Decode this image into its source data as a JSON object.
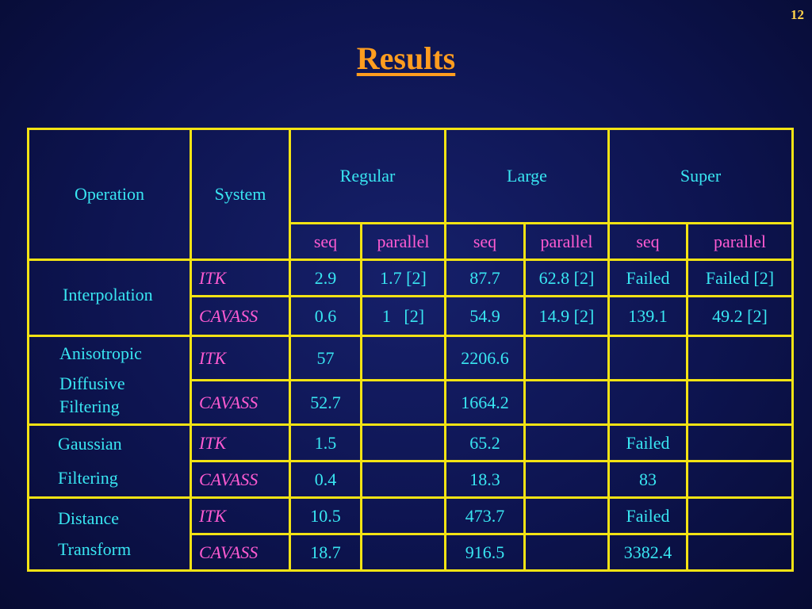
{
  "slide_number": "12",
  "title": "Results",
  "table": {
    "header": {
      "operation": "Operation",
      "system": "System",
      "groups": [
        "Regular",
        "Large",
        "Super"
      ],
      "subheaders": [
        "seq",
        "parallel",
        "seq",
        "parallel",
        "seq",
        "parallel"
      ]
    },
    "operations": [
      {
        "name_lines": [
          "Interpolation"
        ],
        "rows": [
          {
            "system": "ITK",
            "values": [
              "2.9",
              "1.7 [2]",
              "87.7",
              "62.8 [2]",
              "Failed",
              "Failed [2]"
            ]
          },
          {
            "system": "CAVASS",
            "values": [
              "0.6",
              "1   [2]",
              "54.9",
              "14.9 [2]",
              "139.1",
              "49.2 [2]"
            ]
          }
        ]
      },
      {
        "name_lines": [
          "Anisotropic",
          "Diffusive",
          "Filtering"
        ],
        "rows": [
          {
            "system": "ITK",
            "values": [
              "57",
              "",
              "2206.6",
              "",
              "",
              ""
            ]
          },
          {
            "system": "CAVASS",
            "values": [
              "52.7",
              "",
              "1664.2",
              "",
              "",
              ""
            ]
          }
        ]
      },
      {
        "name_lines": [
          "Gaussian",
          "Filtering"
        ],
        "rows": [
          {
            "system": "ITK",
            "values": [
              "1.5",
              "",
              "65.2",
              "",
              "Failed",
              ""
            ]
          },
          {
            "system": "CAVASS",
            "values": [
              "0.4",
              "",
              "18.3",
              "",
              "83",
              ""
            ]
          }
        ]
      },
      {
        "name_lines": [
          "Distance",
          "Transform"
        ],
        "rows": [
          {
            "system": "ITK",
            "values": [
              "10.5",
              "",
              "473.7",
              "",
              "Failed",
              ""
            ]
          },
          {
            "system": "CAVASS",
            "values": [
              "18.7",
              "",
              "916.5",
              "",
              "3382.4",
              ""
            ]
          }
        ]
      }
    ]
  }
}
